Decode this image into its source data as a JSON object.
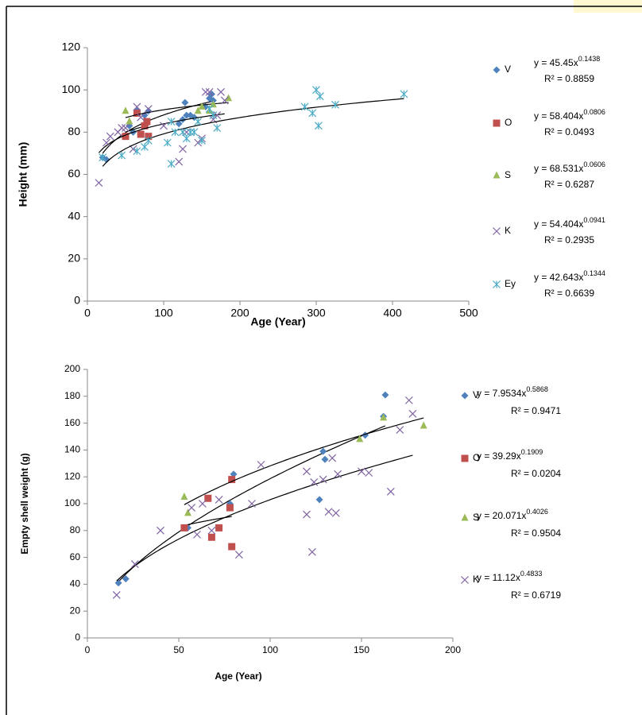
{
  "chart_data": [
    {
      "type": "scatter",
      "xlabel": "Age (Year)",
      "ylabel": "Height (mm)",
      "xlim": [
        0,
        500
      ],
      "xticks": [
        0,
        100,
        200,
        300,
        400,
        500
      ],
      "ylim": [
        0,
        120
      ],
      "yticks": [
        0,
        20,
        40,
        60,
        80,
        100,
        120
      ],
      "series": [
        {
          "name": "V",
          "color": "#4f81bd",
          "marker": "diamond",
          "x": [
            20,
            25,
            55,
            60,
            65,
            75,
            80,
            125,
            128,
            130,
            135,
            155,
            160,
            163,
            165,
            120,
            140
          ],
          "values": [
            68,
            67,
            83,
            80,
            90,
            88,
            90,
            86,
            94,
            88,
            88,
            92,
            96,
            98,
            95,
            84,
            87
          ],
          "trend": {
            "a": 45.45,
            "b": 0.1438
          },
          "equation": "y = 45.45x",
          "exponent": "0.1438",
          "r2": "R² = 0.8859"
        },
        {
          "name": "O",
          "color": "#c0504d",
          "marker": "square",
          "x": [
            50,
            65,
            70,
            78,
            80,
            75
          ],
          "values": [
            78,
            89,
            79,
            85,
            78,
            83
          ],
          "trend": {
            "a": 58.404,
            "b": 0.0806
          },
          "equation": "y = 58.404x",
          "exponent": "0.0806",
          "r2": "R² = 0.0493"
        },
        {
          "name": "S",
          "color": "#9bbb59",
          "marker": "triangle",
          "x": [
            50,
            55,
            145,
            150,
            165,
            185,
            160
          ],
          "values": [
            90,
            85,
            90,
            92,
            93,
            96,
            90
          ],
          "trend": {
            "a": 68.531,
            "b": 0.0606
          },
          "equation": "y = 68.531x",
          "exponent": "0.0606",
          "r2": "R² = 0.6287"
        },
        {
          "name": "K",
          "color": "#8064a2",
          "marker": "x",
          "x": [
            15,
            25,
            30,
            40,
            45,
            60,
            65,
            70,
            80,
            100,
            120,
            125,
            130,
            145,
            150,
            155,
            160,
            165,
            175,
            180,
            170,
            50
          ],
          "values": [
            56,
            75,
            78,
            80,
            82,
            72,
            92,
            87,
            91,
            83,
            66,
            72,
            80,
            75,
            77,
            99,
            99,
            86,
            99,
            95,
            88,
            82
          ],
          "trend": {
            "a": 54.404,
            "b": 0.0941
          },
          "equation": "y = 54.404x",
          "exponent": "0.0941",
          "r2": "R² = 0.2935"
        },
        {
          "name": "Ey",
          "color": "#4bacc6",
          "marker": "star",
          "x": [
            20,
            45,
            65,
            75,
            80,
            105,
            110,
            115,
            125,
            130,
            140,
            145,
            150,
            160,
            165,
            170,
            285,
            295,
            300,
            303,
            305,
            325,
            415,
            110,
            135
          ],
          "values": [
            68,
            69,
            71,
            73,
            76,
            75,
            65,
            80,
            80,
            77,
            80,
            85,
            76,
            91,
            88,
            82,
            92,
            89,
            100,
            83,
            97,
            93,
            98,
            85,
            80
          ],
          "trend": {
            "a": 42.643,
            "b": 0.1344
          },
          "equation": "y = 42.643x",
          "exponent": "0.1344",
          "r2": "R² = 0.6639"
        }
      ]
    },
    {
      "type": "scatter",
      "xlabel": "Age (Year)",
      "ylabel": "Empty shell weight (g)",
      "xlim": [
        0,
        200
      ],
      "xticks": [
        0,
        50,
        100,
        150,
        200
      ],
      "ylim": [
        0,
        200
      ],
      "yticks": [
        0,
        20,
        40,
        60,
        80,
        100,
        120,
        140,
        160,
        180,
        200
      ],
      "series": [
        {
          "name": "V",
          "color": "#4f81bd",
          "marker": "diamond",
          "x": [
            17,
            21,
            55,
            78,
            80,
            127,
            129,
            130,
            152,
            162,
            163
          ],
          "values": [
            41,
            44,
            82,
            100,
            122,
            103,
            139,
            133,
            151,
            165,
            181
          ],
          "trend": {
            "a": 7.9534,
            "b": 0.5868
          },
          "equation": "y = 7.9534x",
          "exponent": "0.5868",
          "r2": "R² = 0.9471"
        },
        {
          "name": "O",
          "color": "#c0504d",
          "marker": "square",
          "x": [
            53,
            66,
            68,
            72,
            78,
            79,
            79
          ],
          "values": [
            82,
            104,
            75,
            82,
            97,
            68,
            118
          ],
          "trend": {
            "a": 39.29,
            "b": 0.1909
          },
          "equation": "y = 39.29x",
          "exponent": "0.1909",
          "r2": "R² = 0.0204"
        },
        {
          "name": "S",
          "color": "#9bbb59",
          "marker": "triangle",
          "x": [
            53,
            55,
            149,
            162,
            184
          ],
          "values": [
            105,
            93,
            148,
            164,
            158
          ],
          "trend": {
            "a": 20.071,
            "b": 0.4026
          },
          "equation": "y = 20.071x",
          "exponent": "0.4026",
          "r2": "R² = 0.9504"
        },
        {
          "name": "K",
          "color": "#8064a2",
          "marker": "x",
          "x": [
            16,
            26,
            40,
            57,
            60,
            63,
            68,
            72,
            83,
            90,
            95,
            120,
            120,
            123,
            124,
            129,
            132,
            134,
            136,
            137,
            150,
            154,
            166,
            171,
            176,
            178
          ],
          "values": [
            32,
            55,
            80,
            97,
            77,
            100,
            80,
            103,
            62,
            100,
            129,
            92,
            124,
            64,
            116,
            118,
            94,
            134,
            93,
            122,
            124,
            123,
            109,
            155,
            177,
            167
          ],
          "trend": {
            "a": 11.12,
            "b": 0.4833
          },
          "equation": "y = 11.12x",
          "exponent": "0.4833",
          "r2": "R² = 0.6719"
        }
      ]
    }
  ]
}
